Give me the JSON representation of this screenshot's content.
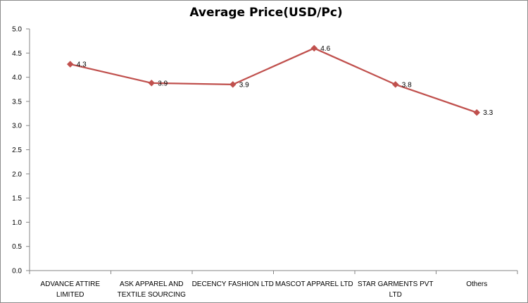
{
  "chart_data": {
    "type": "line",
    "title": "Average Price(USD/Pc)",
    "xlabel": "",
    "ylabel": "",
    "categories": [
      [
        "ADVANCE ATTIRE",
        "LIMITED"
      ],
      [
        "ASK APPAREL AND",
        "TEXTILE SOURCING"
      ],
      [
        "DECENCY  FASHION  LTD"
      ],
      [
        "MASCOT APPAREL LTD"
      ],
      [
        "STAR GARMENTS  PVT",
        "LTD"
      ],
      [
        "Others"
      ]
    ],
    "series": [
      {
        "values": [
          4.27,
          3.88,
          3.85,
          4.6,
          3.85,
          3.27
        ],
        "labels": [
          "4.3",
          "3.9",
          "3.9",
          "4.6",
          "3.8",
          "3.3"
        ],
        "color": "#c0504d"
      }
    ],
    "ylim": [
      0,
      5
    ],
    "yticks": [
      "0.0",
      "0.5",
      "1.0",
      "1.5",
      "2.0",
      "2.5",
      "3.0",
      "3.5",
      "4.0",
      "4.5",
      "5.0"
    ],
    "grid": false,
    "legend": "none"
  }
}
